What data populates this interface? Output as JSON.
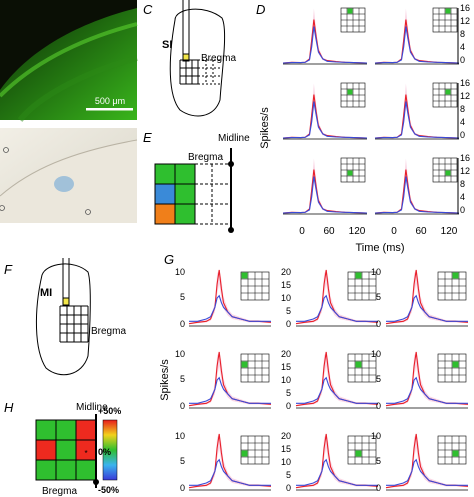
{
  "panels": {
    "c": "C",
    "d": "D",
    "e": "E",
    "f": "F",
    "g": "G",
    "h": "H"
  },
  "micrograph": {
    "scale_bar": "500 μm"
  },
  "panel_c": {
    "region": "SI",
    "landmark": "Bregma"
  },
  "panel_e": {
    "midline": "Midline",
    "landmark": "Bregma"
  },
  "panel_f": {
    "region": "MI",
    "landmark": "Bregma"
  },
  "panel_h": {
    "midline": "Midline",
    "landmark": "Bregma",
    "colorbar_labels": [
      "+50%",
      "0%",
      "-50%"
    ],
    "grid": [
      [
        "#2fbf2f",
        "#2fbf2f",
        "#ee2a1f"
      ],
      [
        "#ee2a1f",
        "#2fbf2f",
        "#ee2a1f"
      ],
      [
        "#2fbf2f",
        "#2fbf2f",
        "#2fbf2f"
      ]
    ]
  },
  "panel_d": {
    "ylabel": "Spikes/s",
    "xlabel": "Time (ms)",
    "xticks": [
      "0",
      "60",
      "120"
    ],
    "yticks_right": [
      "0",
      "4",
      "8",
      "12",
      "16"
    ]
  },
  "panel_g": {
    "ylabel": "Spikes/s",
    "yticks_left": [
      "0",
      "5",
      "10"
    ],
    "yticks_center": [
      "0",
      "5",
      "10",
      "15",
      "20"
    ],
    "yticks_right": [
      "0",
      "5",
      "10"
    ]
  },
  "chart_data": [
    {
      "type": "line",
      "panel": "D",
      "xlabel": "Time (ms)",
      "ylabel": "Spikes/s",
      "xlim": [
        -40,
        150
      ],
      "ylim": [
        0,
        17
      ],
      "x": [
        -40,
        -20,
        0,
        10,
        20,
        25,
        30,
        35,
        40,
        50,
        60,
        80,
        100,
        120,
        150
      ],
      "grid_layout": "3x2",
      "series": [
        {
          "values": [
            0.3,
            0.5,
            0.4,
            0.5,
            1.5,
            7,
            13,
            8,
            4,
            1.5,
            1,
            0.7,
            0.5,
            0.4,
            0.3
          ],
          "color": "#e8202a"
        },
        {
          "values": [
            0.3,
            0.4,
            0.4,
            0.5,
            1.2,
            5,
            11,
            7,
            3.5,
            1.5,
            0.8,
            0.6,
            0.5,
            0.4,
            0.3
          ],
          "color": "#3a4bd8"
        }
      ]
    },
    {
      "type": "line",
      "panel": "G",
      "ylabel": "Spikes/s",
      "xlim": [
        -40,
        150
      ],
      "ylim": [
        0,
        12
      ],
      "x": [
        -40,
        -20,
        0,
        10,
        20,
        25,
        30,
        35,
        40,
        50,
        60,
        80,
        100,
        120,
        150
      ],
      "grid_layout": "3x3",
      "series": [
        {
          "values": [
            0.5,
            0.8,
            1,
            1.5,
            4,
            9,
            12,
            8,
            5,
            3,
            2,
            1.5,
            1,
            1,
            0.8
          ],
          "color": "#e8202a"
        },
        {
          "values": [
            1,
            1,
            1.5,
            2,
            4,
            6,
            6.5,
            5,
            4,
            3,
            2,
            1.5,
            1,
            1,
            1
          ],
          "color": "#3a4bd8"
        }
      ]
    }
  ]
}
